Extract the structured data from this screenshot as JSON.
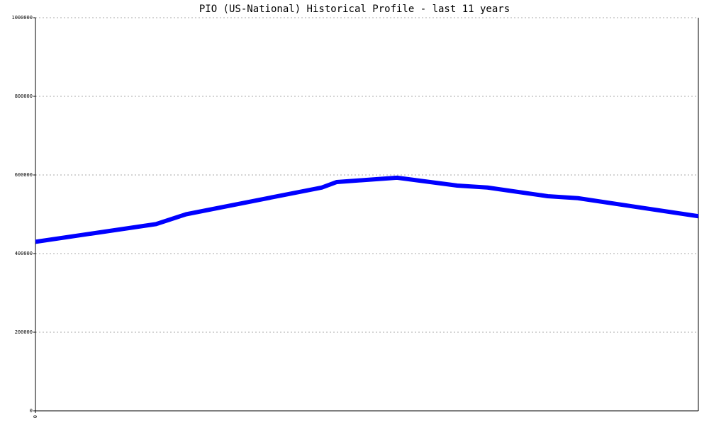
{
  "chart_data": {
    "type": "line",
    "title": "PIO (US-National) Historical Profile - last 11 years",
    "x": [
      0,
      2,
      2.5,
      4.75,
      5,
      6,
      7,
      7.5,
      8.5,
      9,
      11
    ],
    "series": [
      {
        "name": "PIO",
        "color": "#0000ff",
        "values": [
          430000,
          475000,
          500000,
          568000,
          582000,
          593000,
          573000,
          568000,
          546000,
          541000,
          495000
        ]
      }
    ],
    "xlim": [
      0,
      11
    ],
    "xticks": [
      0
    ],
    "ylim": [
      0,
      1000000
    ],
    "yticks": [
      0,
      200000,
      400000,
      600000,
      800000,
      1000000
    ],
    "grid": true
  }
}
